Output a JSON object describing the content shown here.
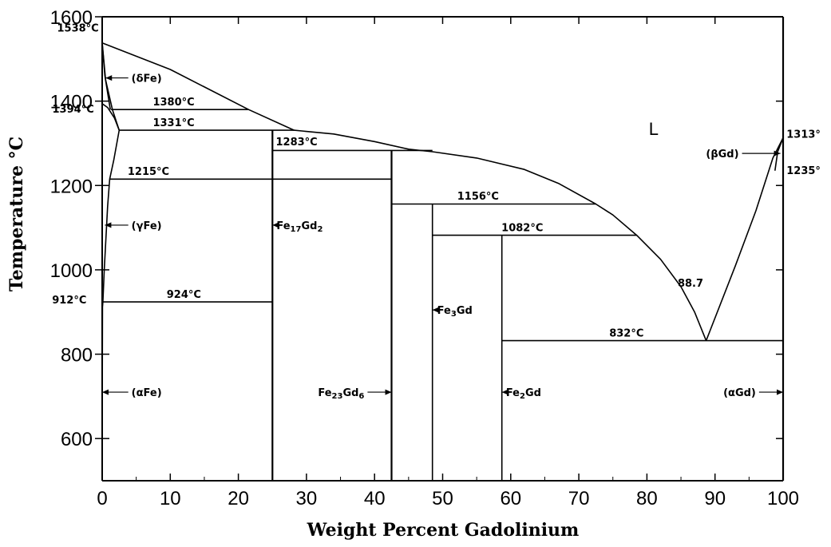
{
  "chart_data": {
    "type": "line",
    "title": "",
    "xlabel": "Weight Percent Gadolinium",
    "ylabel": "Temperature °C",
    "xlim": [
      0,
      100
    ],
    "ylim": [
      500,
      1600
    ],
    "x_ticks": [
      "0",
      "10",
      "20",
      "30",
      "40",
      "50",
      "60",
      "70",
      "80",
      "90",
      "100"
    ],
    "y_ticks": [
      "600",
      "800",
      "1000",
      "1200",
      "1400",
      "1600"
    ],
    "grid": false,
    "curves": [
      {
        "id": "liquidus-fe",
        "points": [
          [
            0,
            1538
          ],
          [
            10,
            1475
          ],
          [
            21.5,
            1380
          ],
          [
            28.2,
            1331
          ]
        ]
      },
      {
        "id": "liquidus-mid",
        "points": [
          [
            28.2,
            1331
          ],
          [
            34,
            1322
          ],
          [
            40,
            1304
          ],
          [
            45,
            1286
          ],
          [
            48.5,
            1280
          ],
          [
            55,
            1265
          ],
          [
            62,
            1238
          ],
          [
            67,
            1205
          ],
          [
            72.5,
            1156
          ],
          [
            75,
            1130
          ],
          [
            78.5,
            1082
          ],
          [
            82,
            1025
          ],
          [
            85,
            960
          ],
          [
            87,
            900
          ],
          [
            88.7,
            832
          ]
        ]
      },
      {
        "id": "liquidus-gd",
        "points": [
          [
            88.7,
            832
          ],
          [
            93,
            1010
          ],
          [
            96,
            1140
          ],
          [
            98.5,
            1265
          ],
          [
            100,
            1313
          ]
        ]
      },
      {
        "id": "delta-fe-left",
        "points": [
          [
            0,
            1538
          ],
          [
            0.4,
            1460
          ],
          [
            1.2,
            1380
          ]
        ]
      },
      {
        "id": "delta-fe-right",
        "points": [
          [
            0,
            1538
          ],
          [
            0.5,
            1450
          ],
          [
            1.5,
            1380
          ],
          [
            2.5,
            1331
          ]
        ]
      },
      {
        "id": "gamma-loop",
        "points": [
          [
            0,
            1394
          ],
          [
            0.8,
            1385
          ],
          [
            1.8,
            1360
          ],
          [
            2.5,
            1331
          ]
        ]
      },
      {
        "id": "gamma-fe-boundary",
        "points": [
          [
            2.5,
            1331
          ],
          [
            1.7,
            1260
          ],
          [
            1.1,
            1215
          ],
          [
            0.8,
            1150
          ],
          [
            0.3,
            1000
          ],
          [
            0.1,
            924
          ]
        ]
      },
      {
        "id": "alpha-fe-boundary",
        "points": [
          [
            0.1,
            924
          ],
          [
            0.05,
            912
          ],
          [
            0,
            600
          ],
          [
            0,
            500
          ]
        ]
      },
      {
        "id": "beta-gd-boundary",
        "points": [
          [
            100,
            1313
          ],
          [
            99.2,
            1280
          ],
          [
            98.8,
            1235
          ]
        ]
      },
      {
        "id": "fe17gd2",
        "points": [
          [
            25,
            500
          ],
          [
            25,
            1331
          ]
        ]
      },
      {
        "id": "fe23gd6",
        "points": [
          [
            42.5,
            500
          ],
          [
            42.5,
            1283
          ]
        ]
      },
      {
        "id": "fe3gd",
        "points": [
          [
            48.5,
            500
          ],
          [
            48.5,
            1156
          ]
        ]
      },
      {
        "id": "fe2gd",
        "points": [
          [
            58.7,
            500
          ],
          [
            58.7,
            1082
          ]
        ]
      },
      {
        "id": "gd-axis",
        "points": [
          [
            100,
            500
          ],
          [
            100,
            1600
          ]
        ]
      },
      {
        "id": "iso-1380",
        "points": [
          [
            1.3,
            1380
          ],
          [
            21.5,
            1380
          ]
        ]
      },
      {
        "id": "iso-1331",
        "points": [
          [
            2.5,
            1331
          ],
          [
            28.2,
            1331
          ]
        ]
      },
      {
        "id": "iso-1283",
        "points": [
          [
            25,
            1283
          ],
          [
            48.5,
            1283
          ]
        ]
      },
      {
        "id": "iso-1215",
        "points": [
          [
            1.1,
            1215
          ],
          [
            42.5,
            1215
          ]
        ]
      },
      {
        "id": "iso-1156",
        "points": [
          [
            42.5,
            1156
          ],
          [
            72.5,
            1156
          ]
        ]
      },
      {
        "id": "iso-1082",
        "points": [
          [
            48.5,
            1082
          ],
          [
            78.5,
            1082
          ]
        ]
      },
      {
        "id": "iso-924",
        "points": [
          [
            0.1,
            924
          ],
          [
            25,
            924
          ]
        ]
      },
      {
        "id": "iso-832",
        "points": [
          [
            58.7,
            832
          ],
          [
            100,
            832
          ]
        ]
      }
    ],
    "annotations": [
      {
        "id": "t1538",
        "text": "1538°C",
        "x": -0.5,
        "y": 1565,
        "anchor": "end"
      },
      {
        "id": "t1394",
        "text": "1394°C",
        "x": -1.2,
        "y": 1373,
        "anchor": "end"
      },
      {
        "id": "t912",
        "text": "912°C",
        "x": -2.3,
        "y": 920,
        "anchor": "end"
      },
      {
        "id": "t1380",
        "text": "1380°C",
        "x": 10.5,
        "y": 1390,
        "anchor": "middle"
      },
      {
        "id": "t1331",
        "text": "1331°C",
        "x": 10.5,
        "y": 1341,
        "anchor": "middle"
      },
      {
        "id": "t1283",
        "text": "1283°C",
        "x": 25.5,
        "y": 1295,
        "anchor": "start"
      },
      {
        "id": "t1215",
        "text": "1215°C",
        "x": 6.8,
        "y": 1225,
        "anchor": "middle"
      },
      {
        "id": "t1156",
        "text": "1156°C",
        "x": 55.2,
        "y": 1166,
        "anchor": "middle"
      },
      {
        "id": "t1082",
        "text": "1082°C",
        "x": 61.7,
        "y": 1092,
        "anchor": "middle"
      },
      {
        "id": "t924",
        "text": "924°C",
        "x": 12,
        "y": 934,
        "anchor": "middle"
      },
      {
        "id": "t832",
        "text": "832°C",
        "x": 77,
        "y": 842,
        "anchor": "middle"
      },
      {
        "id": "t88_7",
        "text": "88.7",
        "x": 86.4,
        "y": 960,
        "anchor": "middle"
      },
      {
        "id": "t1313",
        "text": "1313°",
        "x": 100.5,
        "y": 1313,
        "anchor": "start"
      },
      {
        "id": "t1235",
        "text": "1235°",
        "x": 100.5,
        "y": 1227,
        "anchor": "start"
      }
    ],
    "labels": [
      {
        "id": "delta-fe",
        "text": "(δFe)",
        "x": 4.3,
        "y": 1455,
        "arrow_to": 0.5
      },
      {
        "id": "gamma-fe",
        "text": "(γFe)",
        "x": 4.3,
        "y": 1106,
        "arrow_to": 0.4
      },
      {
        "id": "alpha-fe",
        "text": "(αFe)",
        "x": 4.3,
        "y": 710,
        "arrow_to": 0
      },
      {
        "id": "fe17gd2",
        "text": "Fe17Gd2",
        "x": 25.6,
        "y": 1106,
        "arrow_to": 25
      },
      {
        "id": "fe3gd",
        "text": "Fe3Gd",
        "x": 49.2,
        "y": 905,
        "arrow_to": 48.5
      },
      {
        "id": "fe23gd6",
        "text": "Fe23Gd6",
        "x": 38.5,
        "y": 710,
        "arrow_to": 42.5
      },
      {
        "id": "fe2gd",
        "text": "Fe2Gd",
        "x": 59.3,
        "y": 710,
        "arrow_to": 58.7
      },
      {
        "id": "beta-gd",
        "text": "(βGd)",
        "x": 93.5,
        "y": 1276,
        "arrow_to": 99.6
      },
      {
        "id": "alpha-gd",
        "text": "(αGd)",
        "x": 96,
        "y": 710,
        "arrow_to": 100
      }
    ],
    "regions": [
      {
        "id": "liquid",
        "text": "L",
        "x": 81,
        "y": 1320
      }
    ]
  }
}
